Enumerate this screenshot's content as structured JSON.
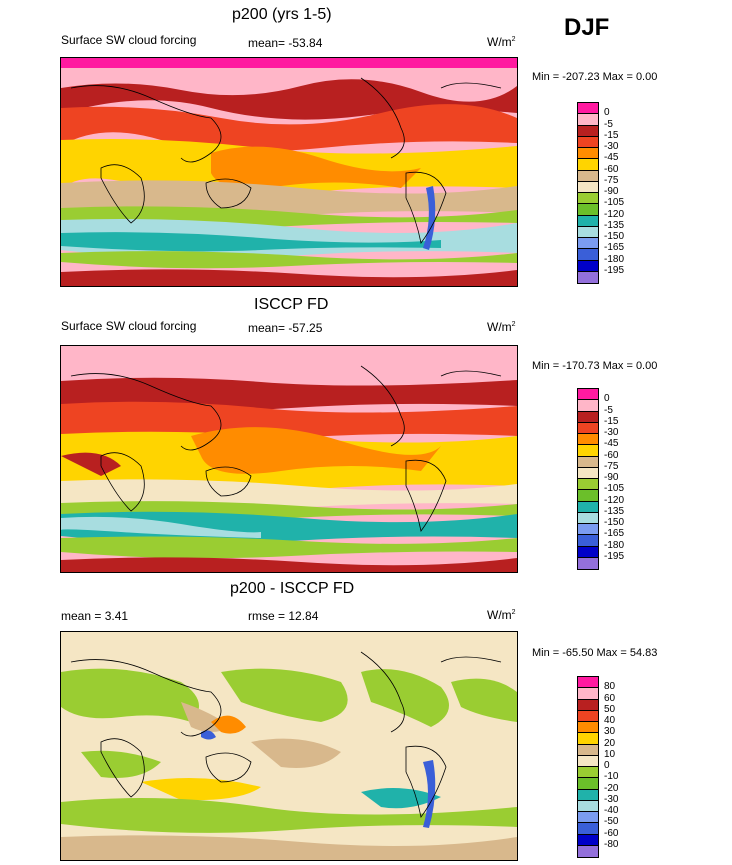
{
  "season": "DJF",
  "panels": [
    {
      "title": "p200 (yrs 1-5)",
      "left_label": "Surface SW cloud forcing",
      "stat_label": "mean= -53.84",
      "units": "W/m",
      "units_sup": "2",
      "minmax": "Min = -207.23 Max =   0.00",
      "levels": [
        "0",
        "-5",
        "-15",
        "-30",
        "-45",
        "-60",
        "-75",
        "-90",
        "-105",
        "-120",
        "-135",
        "-150",
        "-165",
        "-180",
        "-195"
      ],
      "colors": [
        "#ff1aa0",
        "#ffb6c8",
        "#b82020",
        "#ee4422",
        "#ff8c00",
        "#ffd400",
        "#d8b88c",
        "#f5e6c4",
        "#9acd32",
        "#6bbf2a",
        "#20b2aa",
        "#a8dde0",
        "#7b9cf0",
        "#3a5fd8",
        "#0000c8",
        "#9370db"
      ],
      "mean_value": -53.84,
      "min_value": -207.23,
      "max_value": 0.0
    },
    {
      "title": "ISCCP FD",
      "left_label": "Surface SW cloud forcing",
      "stat_label": "mean= -57.25",
      "units": "W/m",
      "units_sup": "2",
      "minmax": "Min = -170.73 Max =   0.00",
      "levels": [
        "0",
        "-5",
        "-15",
        "-30",
        "-45",
        "-60",
        "-75",
        "-90",
        "-105",
        "-120",
        "-135",
        "-150",
        "-165",
        "-180",
        "-195"
      ],
      "colors": [
        "#ff1aa0",
        "#ffb6c8",
        "#b82020",
        "#ee4422",
        "#ff8c00",
        "#ffd400",
        "#d8b88c",
        "#f5e6c4",
        "#9acd32",
        "#6bbf2a",
        "#20b2aa",
        "#a8dde0",
        "#7b9cf0",
        "#3a5fd8",
        "#0000c8",
        "#9370db"
      ],
      "mean_value": -57.25,
      "min_value": -170.73,
      "max_value": 0.0
    },
    {
      "title": "p200 - ISCCP FD",
      "left_label": "mean =   3.41",
      "stat_label": "rmse =  12.84",
      "units": "W/m",
      "units_sup": "2",
      "minmax": "Min = -65.50 Max =  54.83",
      "levels": [
        "80",
        "60",
        "50",
        "40",
        "30",
        "20",
        "10",
        "0",
        "-10",
        "-20",
        "-30",
        "-40",
        "-50",
        "-60",
        "-80"
      ],
      "colors": [
        "#ff1aa0",
        "#ffb6c8",
        "#b82020",
        "#ee4422",
        "#ff8c00",
        "#ffd400",
        "#d8b88c",
        "#f5e6c4",
        "#9acd32",
        "#6bbf2a",
        "#20b2aa",
        "#a8dde0",
        "#7b9cf0",
        "#3a5fd8",
        "#0000c8",
        "#9370db"
      ],
      "mean_value": 3.41,
      "rmse_value": 12.84,
      "min_value": -65.5,
      "max_value": 54.83
    }
  ]
}
